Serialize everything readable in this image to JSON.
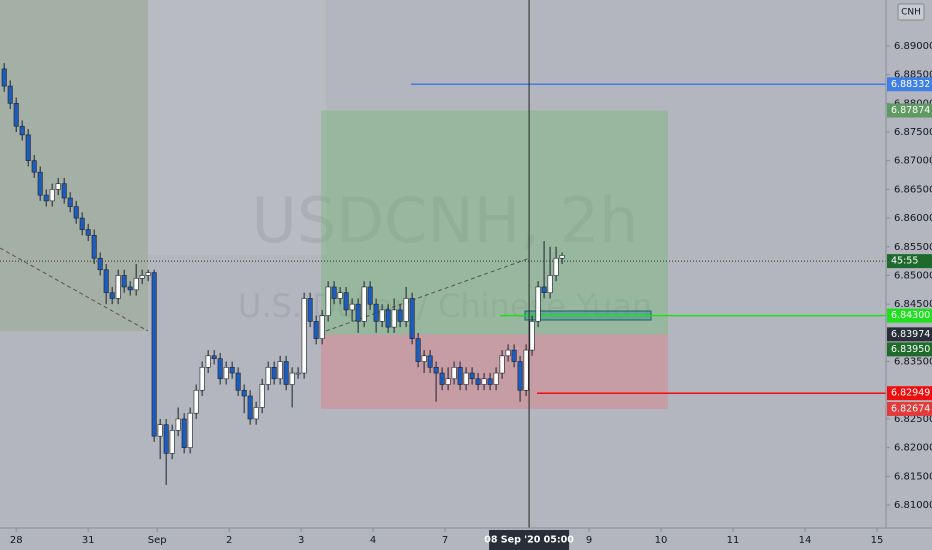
{
  "chart_data": {
    "type": "candlestick",
    "title": "USDCNH, 2h",
    "subtitle": "U.S. Dollar / Chinese Yuan",
    "symbol_badge": "CNH",
    "open": [
      6.886,
      6.883,
      6.88,
      6.876,
      6.8745,
      6.87,
      6.868,
      6.864,
      6.863,
      6.865,
      6.866,
      6.8635,
      6.862,
      6.86,
      6.858,
      6.857,
      6.853,
      6.851,
      6.847,
      6.846,
      6.85,
      6.848,
      6.8475,
      6.8495,
      6.85,
      6.8505,
      6.822,
      6.824,
      6.819,
      6.823,
      6.825,
      6.82,
      6.826,
      6.83,
      6.834,
      6.836,
      6.8355,
      6.832,
      6.834,
      6.833,
      6.83,
      6.829,
      6.825,
      6.827,
      6.831,
      6.834,
      6.832,
      6.835,
      6.831,
      6.833,
      6.833,
      6.846,
      6.842,
      6.839,
      6.843,
      6.848,
      6.846,
      6.847,
      6.844,
      6.845,
      6.842,
      6.848,
      6.845,
      6.842,
      6.844,
      6.841,
      6.844,
      6.842,
      6.846,
      6.839,
      6.835,
      6.836,
      6.834,
      6.833,
      6.831,
      6.832,
      6.834,
      6.831,
      6.833,
      6.832,
      6.831,
      6.832,
      6.831,
      6.833,
      6.836,
      6.837,
      6.835,
      6.83,
      6.837,
      6.842,
      6.848,
      6.847,
      6.85,
      6.853
    ],
    "high": [
      6.887,
      6.884,
      6.881,
      6.877,
      6.8755,
      6.871,
      6.869,
      6.865,
      6.866,
      6.867,
      6.867,
      6.8645,
      6.863,
      6.861,
      6.859,
      6.858,
      6.854,
      6.852,
      6.848,
      6.851,
      6.851,
      6.849,
      6.852,
      6.851,
      6.851,
      6.851,
      6.825,
      6.825,
      6.824,
      6.827,
      6.826,
      6.827,
      6.831,
      6.835,
      6.837,
      6.837,
      6.8365,
      6.835,
      6.835,
      6.834,
      6.831,
      6.83,
      6.828,
      6.832,
      6.835,
      6.835,
      6.836,
      6.836,
      6.834,
      6.834,
      6.847,
      6.847,
      6.843,
      6.844,
      6.849,
      6.849,
      6.848,
      6.848,
      6.846,
      6.846,
      6.849,
      6.849,
      6.846,
      6.845,
      6.845,
      6.846,
      6.845,
      6.848,
      6.847,
      6.84,
      6.837,
      6.837,
      6.835,
      6.834,
      6.834,
      6.835,
      6.835,
      6.834,
      6.834,
      6.833,
      6.833,
      6.833,
      6.834,
      6.837,
      6.838,
      6.838,
      6.836,
      6.838,
      6.843,
      6.849,
      6.856,
      6.855,
      6.855,
      6.854
    ],
    "low": [
      6.882,
      6.879,
      6.875,
      6.8735,
      6.869,
      6.867,
      6.863,
      6.862,
      6.862,
      6.864,
      6.8625,
      6.861,
      6.859,
      6.857,
      6.856,
      6.852,
      6.85,
      6.845,
      6.845,
      6.845,
      6.847,
      6.8465,
      6.8465,
      6.8485,
      6.849,
      6.821,
      6.818,
      6.8135,
      6.818,
      6.822,
      6.819,
      6.819,
      6.825,
      6.829,
      6.833,
      6.8345,
      6.831,
      6.831,
      6.832,
      6.829,
      6.826,
      6.824,
      6.824,
      6.826,
      6.83,
      6.831,
      6.831,
      6.83,
      6.827,
      6.832,
      6.832,
      6.841,
      6.838,
      6.838,
      6.842,
      6.845,
      6.845,
      6.843,
      6.842,
      6.84,
      6.841,
      6.844,
      6.84,
      6.841,
      6.84,
      6.84,
      6.841,
      6.841,
      6.838,
      6.834,
      6.833,
      6.833,
      6.828,
      6.83,
      6.83,
      6.831,
      6.83,
      6.83,
      6.831,
      6.83,
      6.83,
      6.83,
      6.83,
      6.832,
      6.835,
      6.834,
      6.828,
      6.829,
      6.836,
      6.841,
      6.846,
      6.846,
      6.849,
      6.852
    ],
    "close": [
      6.883,
      6.88,
      6.876,
      6.8745,
      6.87,
      6.868,
      6.864,
      6.863,
      6.865,
      6.866,
      6.8635,
      6.862,
      6.86,
      6.858,
      6.857,
      6.853,
      6.851,
      6.847,
      6.846,
      6.85,
      6.848,
      6.8475,
      6.8495,
      6.85,
      6.8505,
      6.822,
      6.824,
      6.819,
      6.823,
      6.825,
      6.82,
      6.826,
      6.83,
      6.834,
      6.836,
      6.8355,
      6.832,
      6.834,
      6.833,
      6.83,
      6.829,
      6.825,
      6.827,
      6.831,
      6.834,
      6.832,
      6.835,
      6.831,
      6.833,
      6.833,
      6.846,
      6.842,
      6.839,
      6.843,
      6.848,
      6.846,
      6.847,
      6.844,
      6.845,
      6.842,
      6.848,
      6.845,
      6.842,
      6.844,
      6.841,
      6.844,
      6.842,
      6.846,
      6.839,
      6.835,
      6.836,
      6.834,
      6.833,
      6.831,
      6.832,
      6.834,
      6.831,
      6.833,
      6.832,
      6.831,
      6.832,
      6.831,
      6.833,
      6.836,
      6.837,
      6.835,
      6.83,
      6.837,
      6.842,
      6.848,
      6.847,
      6.85,
      6.853,
      6.8535
    ],
    "up_color": "#ffffff",
    "down_color": "#1f5cb8",
    "wick_color": "#1e222d",
    "ylim": [
      6.806,
      6.898
    ],
    "yticks": [
      {
        "value": 6.81,
        "label": "6.81000"
      },
      {
        "value": 6.815,
        "label": "6.81500"
      },
      {
        "value": 6.82,
        "label": "6.82000"
      },
      {
        "value": 6.825,
        "label": "6.82500"
      },
      {
        "value": 6.83,
        "label": "6.83000"
      },
      {
        "value": 6.835,
        "label": "6.83500"
      },
      {
        "value": 6.84,
        "label": "6.84000"
      },
      {
        "value": 6.845,
        "label": "6.84500"
      },
      {
        "value": 6.85,
        "label": "6.85000"
      },
      {
        "value": 6.855,
        "label": "6.85500"
      },
      {
        "value": 6.86,
        "label": "6.86000"
      },
      {
        "value": 6.865,
        "label": "6.86500"
      },
      {
        "value": 6.87,
        "label": "6.87000"
      },
      {
        "value": 6.875,
        "label": "6.87500"
      },
      {
        "value": 6.88,
        "label": "6.88000"
      },
      {
        "value": 6.885,
        "label": "6.88500"
      },
      {
        "value": 6.89,
        "label": "6.89000"
      }
    ],
    "xlim": [
      -0.7,
      147
    ],
    "xticks": [
      {
        "value": 2,
        "label": "28"
      },
      {
        "value": 14,
        "label": "31"
      },
      {
        "value": 25.5,
        "label": "Sep"
      },
      {
        "value": 37.5,
        "label": "2"
      },
      {
        "value": 49.5,
        "label": "3"
      },
      {
        "value": 61.5,
        "label": "4"
      },
      {
        "value": 73.5,
        "label": "7"
      },
      {
        "value": 97.5,
        "label": "9"
      },
      {
        "value": 109.5,
        "label": "10"
      },
      {
        "value": 121.5,
        "label": "11"
      },
      {
        "value": 133.5,
        "label": "14"
      },
      {
        "value": 145.5,
        "label": "15"
      }
    ],
    "crosshair": {
      "value": 87.5,
      "label": "08 Sep '20   05:00"
    },
    "price_labels": [
      {
        "value": 6.88332,
        "label": "6.88332",
        "color": "#3f7fe6"
      },
      {
        "value": 6.87874,
        "label": "6.87874",
        "color": "#5e9a62"
      },
      {
        "value": 6.8525,
        "label": "45:55",
        "color": "#1d6a2c"
      },
      {
        "value": 6.843,
        "label": "6.84300",
        "color": "#1fe01f"
      },
      {
        "value": 6.83974,
        "label": "6.83974",
        "color": "#2a2e39"
      },
      {
        "value": 6.8395,
        "label": "6.83950",
        "color": "#1f6b2b"
      },
      {
        "value": 6.82949,
        "label": "6.82949",
        "color": "#f20d0d"
      },
      {
        "value": 6.82674,
        "label": "6.82674",
        "color": "#e23b3b"
      }
    ]
  }
}
